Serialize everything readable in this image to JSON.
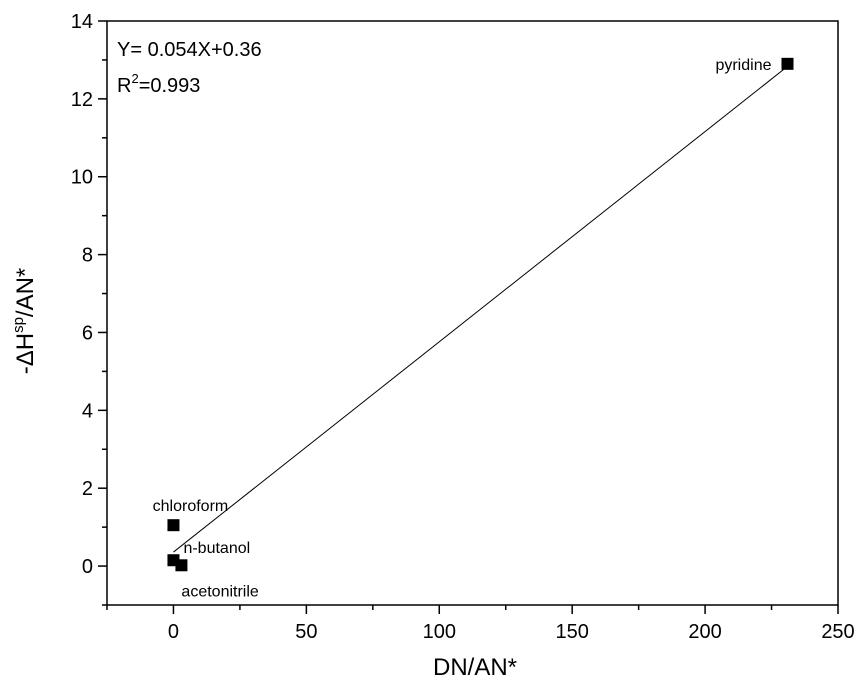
{
  "chart_data": {
    "type": "scatter",
    "xlabel": "DN/AN*",
    "ylabel": {
      "prefix": "-ΔH",
      "superscript": "sp",
      "suffix": "/AN*"
    },
    "xlim": [
      -25,
      250
    ],
    "ylim": [
      -1,
      14
    ],
    "x_ticks": [
      0,
      50,
      100,
      150,
      200,
      250
    ],
    "y_ticks": [
      0,
      2,
      4,
      6,
      8,
      10,
      12,
      14
    ],
    "grid": false,
    "legend": "none",
    "points": [
      {
        "label": "pyridine",
        "x": 231,
        "y": 12.9
      },
      {
        "label": "chloroform",
        "x": 0,
        "y": 1.05
      },
      {
        "label": "n-butanol",
        "x": 0,
        "y": 0.15
      },
      {
        "label": "acetonitrile",
        "x": 3,
        "y": 0.02
      }
    ],
    "fit_line": {
      "slope": 0.054,
      "intercept": 0.36,
      "x_range": [
        0,
        231
      ]
    },
    "annotations": {
      "equation": "Y= 0.054X+0.36",
      "r2_prefix": "R",
      "r2_superscript": "2",
      "r2_suffix": "=0.993"
    },
    "colors": {
      "marker": "#000000",
      "line": "#000000",
      "axes": "#000000"
    }
  }
}
